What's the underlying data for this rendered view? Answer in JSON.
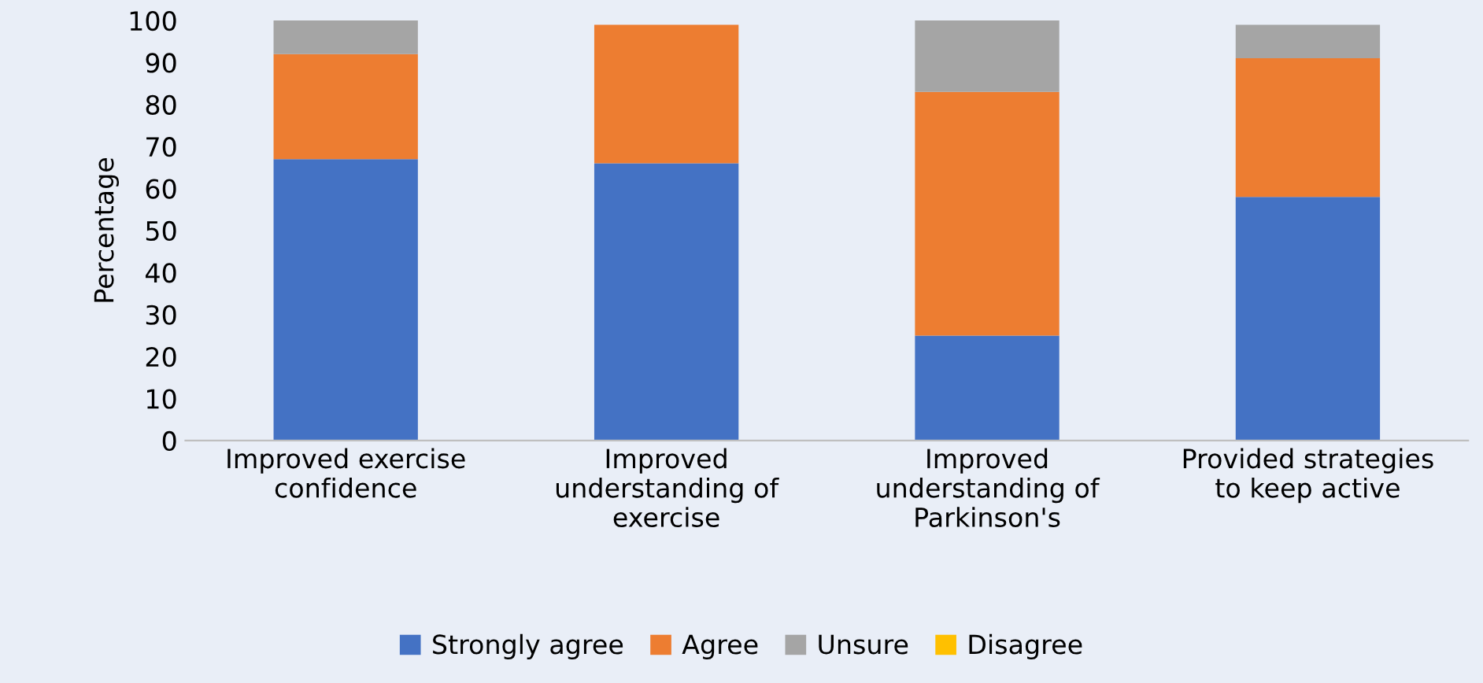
{
  "chart_data": {
    "type": "bar",
    "stacked": true,
    "ylabel": "Percentage",
    "categories": [
      "Improved exercise\nconfidence",
      "Improved\nunderstanding of\nexercise",
      "Improved\nunderstanding of\nParkinson's",
      "Provided strategies\nto keep active"
    ],
    "series": [
      {
        "name": "Strongly agree",
        "color": "#4472c4",
        "values": [
          67,
          66,
          25,
          58
        ]
      },
      {
        "name": "Agree",
        "color": "#ed7d31",
        "values": [
          25,
          33,
          58,
          33
        ]
      },
      {
        "name": "Unsure",
        "color": "#a5a5a5",
        "values": [
          8,
          0,
          17,
          8
        ]
      },
      {
        "name": "Disagree",
        "color": "#ffc000",
        "values": [
          0,
          0,
          0,
          0
        ]
      }
    ],
    "ylim": [
      0,
      100
    ],
    "yticks": [
      0,
      10,
      20,
      30,
      40,
      50,
      60,
      70,
      80,
      90,
      100
    ],
    "grid": false,
    "legend": "bottom"
  }
}
